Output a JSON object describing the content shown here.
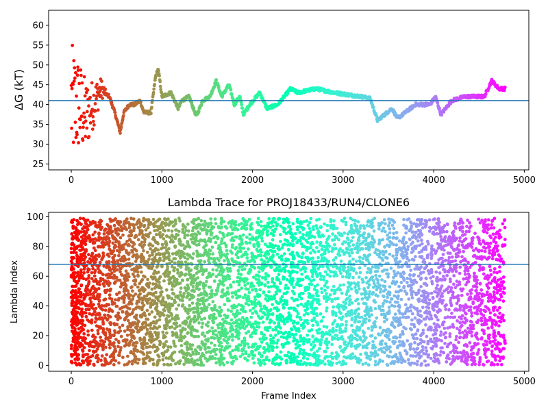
{
  "chart_data": [
    {
      "type": "scatter",
      "title": "",
      "xlabel": "",
      "ylabel": "ΔG (kT)",
      "xlim": [
        -250,
        5050
      ],
      "ylim": [
        23.5,
        63.8
      ],
      "xticks": [
        0,
        1000,
        2000,
        3000,
        4000,
        5000
      ],
      "yticks": [
        25,
        30,
        35,
        40,
        45,
        50,
        55,
        60
      ],
      "hline": 41.0,
      "hline_color": "#1f77b4",
      "colormap": "rainbow",
      "n_frames": 4800,
      "anchors": [
        {
          "x": 0,
          "y": 40
        },
        {
          "x": 80,
          "y": 40
        },
        {
          "x": 160,
          "y": 37
        },
        {
          "x": 240,
          "y": 40
        },
        {
          "x": 330,
          "y": 44
        },
        {
          "x": 420,
          "y": 42
        },
        {
          "x": 480,
          "y": 38
        },
        {
          "x": 540,
          "y": 33
        },
        {
          "x": 580,
          "y": 38
        },
        {
          "x": 640,
          "y": 40
        },
        {
          "x": 700,
          "y": 40
        },
        {
          "x": 760,
          "y": 41
        },
        {
          "x": 800,
          "y": 38
        },
        {
          "x": 880,
          "y": 38
        },
        {
          "x": 930,
          "y": 47
        },
        {
          "x": 960,
          "y": 49
        },
        {
          "x": 1000,
          "y": 42
        },
        {
          "x": 1100,
          "y": 43
        },
        {
          "x": 1180,
          "y": 39
        },
        {
          "x": 1220,
          "y": 41
        },
        {
          "x": 1300,
          "y": 42
        },
        {
          "x": 1380,
          "y": 37
        },
        {
          "x": 1450,
          "y": 41
        },
        {
          "x": 1530,
          "y": 42
        },
        {
          "x": 1600,
          "y": 46
        },
        {
          "x": 1660,
          "y": 42
        },
        {
          "x": 1740,
          "y": 45
        },
        {
          "x": 1800,
          "y": 40
        },
        {
          "x": 1860,
          "y": 42
        },
        {
          "x": 1900,
          "y": 37.5
        },
        {
          "x": 1970,
          "y": 40
        },
        {
          "x": 2080,
          "y": 43
        },
        {
          "x": 2160,
          "y": 39
        },
        {
          "x": 2280,
          "y": 40
        },
        {
          "x": 2420,
          "y": 44
        },
        {
          "x": 2500,
          "y": 43
        },
        {
          "x": 2700,
          "y": 44
        },
        {
          "x": 2900,
          "y": 43
        },
        {
          "x": 3200,
          "y": 42
        },
        {
          "x": 3300,
          "y": 41.5
        },
        {
          "x": 3380,
          "y": 36
        },
        {
          "x": 3540,
          "y": 39
        },
        {
          "x": 3600,
          "y": 36.5
        },
        {
          "x": 3800,
          "y": 40
        },
        {
          "x": 3960,
          "y": 40
        },
        {
          "x": 4020,
          "y": 42
        },
        {
          "x": 4080,
          "y": 37.5
        },
        {
          "x": 4200,
          "y": 41
        },
        {
          "x": 4340,
          "y": 42
        },
        {
          "x": 4560,
          "y": 42
        },
        {
          "x": 4640,
          "y": 46
        },
        {
          "x": 4720,
          "y": 44
        },
        {
          "x": 4790,
          "y": 44
        }
      ],
      "early_scatter": {
        "x_end": 400,
        "y_range": [
          24,
          58.5
        ]
      }
    },
    {
      "type": "scatter",
      "title": "Lambda Trace for PROJ18433/RUN4/CLONE6",
      "xlabel": "Frame Index",
      "ylabel": "Lambda Index",
      "xlim": [
        -250,
        5050
      ],
      "ylim": [
        -4,
        103
      ],
      "xticks": [
        0,
        1000,
        2000,
        3000,
        4000,
        5000
      ],
      "yticks": [
        0,
        20,
        40,
        60,
        80,
        100
      ],
      "hline": 68,
      "hline_color": "#1f77b4",
      "colormap": "rainbow",
      "n_frames": 4800,
      "value_range": [
        0,
        99
      ],
      "n_points": 6000
    }
  ]
}
